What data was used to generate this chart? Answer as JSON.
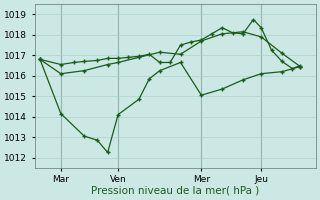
{
  "background_color": "#cce8e4",
  "line_color": "#1a5c1a",
  "grid_color": "#aad4cc",
  "vline_color": "#607878",
  "xlabel": "Pression niveau de la mer( hPa )",
  "ylim": [
    1011.5,
    1019.5
  ],
  "yticks": [
    1012,
    1013,
    1014,
    1015,
    1016,
    1017,
    1018,
    1019
  ],
  "xtick_labels": [
    "Mar",
    "Ven",
    "Mer",
    "Jeu"
  ],
  "xtick_positions": [
    0.08,
    0.3,
    0.62,
    0.85
  ],
  "vline_positions": [
    0.08,
    0.3,
    0.62,
    0.85
  ],
  "line1_x": [
    0.0,
    0.08,
    0.13,
    0.17,
    0.22,
    0.26,
    0.3,
    0.34,
    0.38,
    0.42,
    0.46,
    0.5,
    0.54,
    0.58,
    0.62,
    0.66,
    0.7,
    0.74,
    0.78,
    0.82,
    0.85,
    0.89,
    0.93,
    0.97,
    1.0
  ],
  "line1_y": [
    1016.8,
    1016.55,
    1016.65,
    1016.7,
    1016.75,
    1016.85,
    1016.85,
    1016.9,
    1016.95,
    1017.05,
    1016.65,
    1016.65,
    1017.5,
    1017.65,
    1017.75,
    1018.05,
    1018.35,
    1018.1,
    1018.05,
    1018.75,
    1018.35,
    1017.25,
    1016.7,
    1016.35,
    1016.5
  ],
  "line2_x": [
    0.0,
    0.08,
    0.17,
    0.26,
    0.3,
    0.38,
    0.46,
    0.54,
    0.62,
    0.7,
    0.78,
    0.85,
    0.93,
    1.0
  ],
  "line2_y": [
    1016.8,
    1016.1,
    1016.25,
    1016.55,
    1016.65,
    1016.9,
    1017.15,
    1017.05,
    1017.7,
    1018.05,
    1018.15,
    1017.9,
    1017.1,
    1016.45
  ],
  "line3_x": [
    0.0,
    0.08,
    0.17,
    0.22,
    0.26,
    0.3,
    0.38,
    0.42,
    0.46,
    0.54,
    0.62,
    0.7,
    0.78,
    0.85,
    0.93,
    1.0
  ],
  "line3_y": [
    1016.8,
    1014.15,
    1013.05,
    1012.85,
    1012.25,
    1014.1,
    1014.85,
    1015.85,
    1016.25,
    1016.65,
    1015.05,
    1015.35,
    1015.8,
    1016.1,
    1016.2,
    1016.45
  ],
  "tick_fontsize": 6.5,
  "xlabel_fontsize": 7.5
}
